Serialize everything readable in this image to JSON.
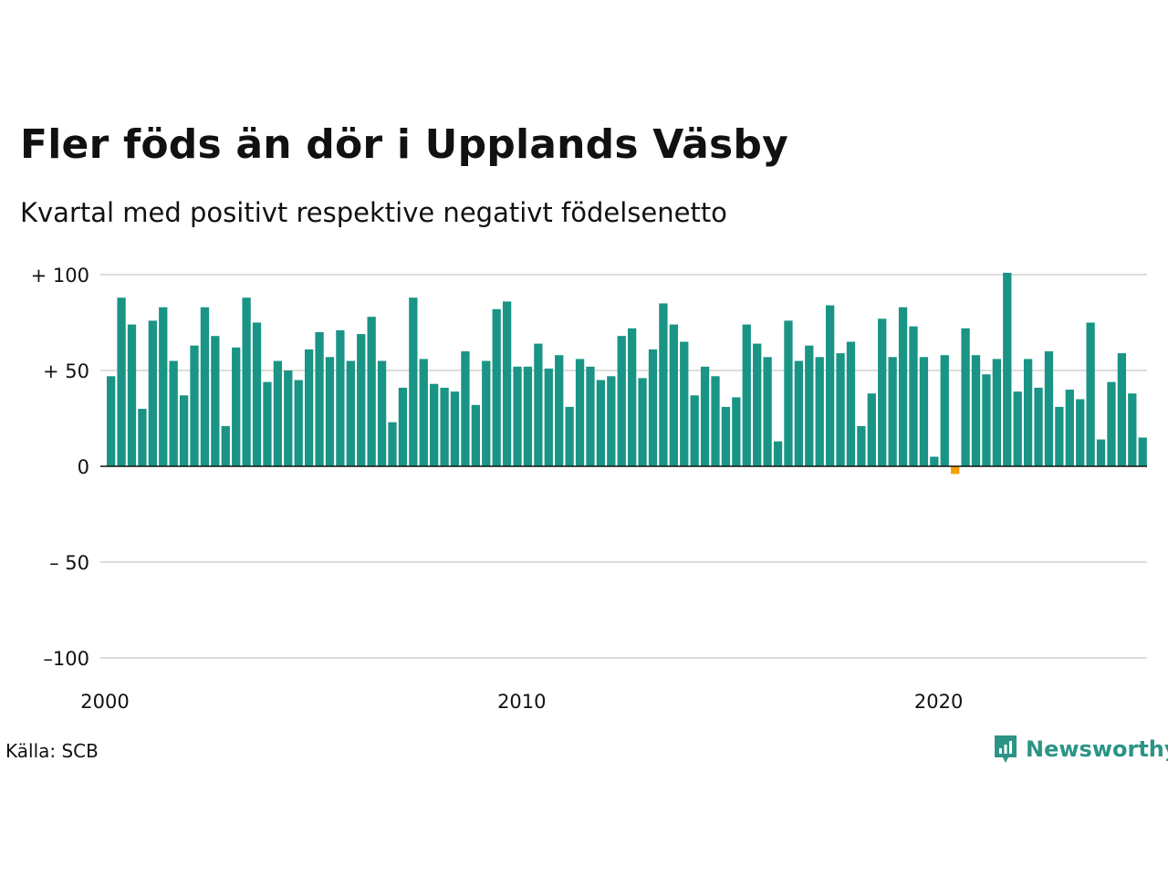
{
  "title": "Fler föds än dör i Upplands Väsby",
  "subtitle": "Kvartal med positivt respektive negativt födelsenetto",
  "source": "Källa: SCB",
  "brand": "Newsworthy",
  "colors": {
    "positive": "#1a9485",
    "negative": "#f5a000",
    "grid": "#dddddd",
    "axis": "#111111"
  },
  "chart_data": {
    "type": "bar",
    "start_year": 2000,
    "y_ticks": [
      {
        "value": 100,
        "label": "+ 100"
      },
      {
        "value": 50,
        "label": "+  50"
      },
      {
        "value": 0,
        "label": "0"
      },
      {
        "value": -50,
        "label": "– 50"
      },
      {
        "value": -100,
        "label": "–100"
      }
    ],
    "x_ticks": [
      {
        "year": 2000,
        "label": "2000"
      },
      {
        "year": 2010,
        "label": "2010"
      },
      {
        "year": 2020,
        "label": "2020"
      }
    ],
    "ylim": [
      -100,
      100
    ],
    "grid": true,
    "values": [
      47,
      88,
      74,
      30,
      76,
      83,
      55,
      37,
      63,
      83,
      68,
      21,
      62,
      88,
      75,
      44,
      55,
      50,
      45,
      61,
      70,
      57,
      71,
      55,
      69,
      78,
      55,
      23,
      41,
      88,
      56,
      43,
      41,
      39,
      60,
      32,
      55,
      82,
      86,
      52,
      52,
      64,
      51,
      58,
      31,
      56,
      52,
      45,
      47,
      68,
      72,
      46,
      61,
      85,
      74,
      65,
      37,
      52,
      47,
      31,
      36,
      74,
      64,
      57,
      13,
      76,
      55,
      63,
      57,
      84,
      59,
      65,
      21,
      38,
      77,
      57,
      83,
      73,
      57,
      5,
      58,
      -4,
      72,
      58,
      48,
      56,
      101,
      39,
      56,
      41,
      60,
      31,
      40,
      35,
      75,
      14,
      44,
      59,
      38,
      15
    ]
  }
}
